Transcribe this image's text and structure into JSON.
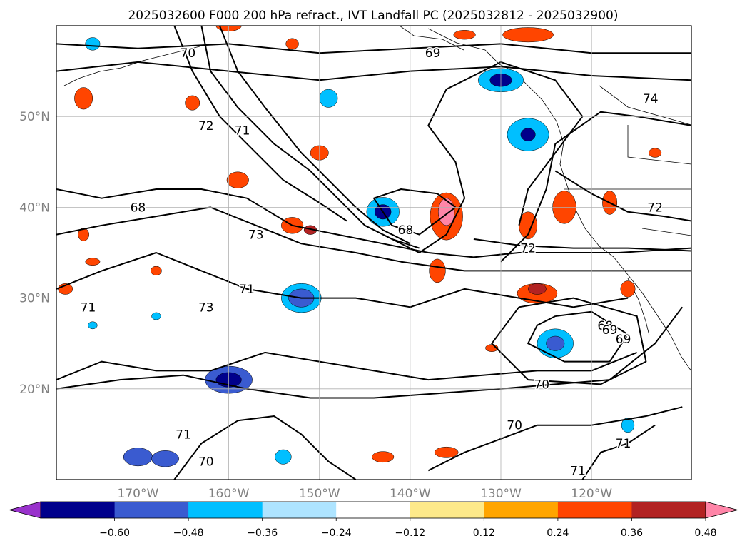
{
  "chart_data": {
    "type": "contour-map",
    "title": "2025032600 F000 200 hPa refract., IVT Landfall PC (2025032812 - 2025032900)",
    "x_axis": {
      "ticks": [
        -170,
        -160,
        -150,
        -140,
        -130,
        -120
      ],
      "tick_labels": [
        "170°W",
        "160°W",
        "150°W",
        "140°W",
        "130°W",
        "120°W"
      ],
      "range": [
        -179,
        -109
      ]
    },
    "y_axis": {
      "ticks": [
        20,
        30,
        40,
        50
      ],
      "tick_labels": [
        "20°N",
        "30°N",
        "40°N",
        "50°N"
      ],
      "range": [
        10,
        60
      ]
    },
    "grid": true,
    "colorbar": {
      "orientation": "horizontal",
      "extend": "both",
      "boundaries": [
        -0.6,
        -0.48,
        -0.36,
        -0.24,
        -0.12,
        0.12,
        0.24,
        0.36,
        0.48,
        0.6
      ],
      "tick_labels": [
        "−0.60",
        "−0.48",
        "−0.36",
        "−0.24",
        "−0.12",
        "0.12",
        "0.24",
        "0.36",
        "0.48",
        "0.60"
      ],
      "colors": [
        "#9932cc",
        "#00008b",
        "#3a5bd0",
        "#00bfff",
        "#aee4ff",
        "#ffffff",
        "#fde98a",
        "#ffa500",
        "#ff4500",
        "#b22222",
        "#ff85a8"
      ]
    },
    "contour_labels": [
      "70",
      "72",
      "71",
      "68",
      "69",
      "74",
      "72",
      "68",
      "73",
      "72",
      "71",
      "73",
      "71",
      "69",
      "68",
      "69",
      "70",
      "71",
      "70",
      "70",
      "71",
      "71"
    ],
    "contours": [
      {
        "level": 72,
        "points": [
          [
            -179,
            42
          ],
          [
            -174,
            41
          ],
          [
            -168,
            42
          ],
          [
            -163,
            42
          ],
          [
            -158,
            41
          ],
          [
            -153,
            38
          ],
          [
            -148,
            37
          ],
          [
            -143,
            36
          ],
          [
            -138,
            35
          ],
          [
            -133,
            34.5
          ],
          [
            -128,
            35
          ],
          [
            -122,
            35
          ],
          [
            -117,
            35
          ],
          [
            -109,
            35.5
          ]
        ]
      },
      {
        "level": 71,
        "points": [
          [
            -179,
            37
          ],
          [
            -174,
            38
          ],
          [
            -168,
            39
          ],
          [
            -162,
            40
          ],
          [
            -157,
            38
          ],
          [
            -152,
            36
          ],
          [
            -146,
            35
          ],
          [
            -141,
            34
          ],
          [
            -134,
            33
          ],
          [
            -126,
            33
          ],
          [
            -118,
            33
          ],
          [
            -109,
            33
          ]
        ]
      },
      {
        "level": 73,
        "points": [
          [
            -179,
            31
          ],
          [
            -174,
            33
          ],
          [
            -168,
            35
          ],
          [
            -163,
            33
          ],
          [
            -158,
            31
          ],
          [
            -152,
            30
          ],
          [
            -146,
            30
          ],
          [
            -140,
            29
          ],
          [
            -134,
            31
          ],
          [
            -128,
            30
          ],
          [
            -122,
            29
          ],
          [
            -116,
            30
          ]
        ]
      },
      {
        "level": 71,
        "points": [
          [
            -179,
            21
          ],
          [
            -174,
            23
          ],
          [
            -168,
            22
          ],
          [
            -162,
            22
          ],
          [
            -156,
            24
          ],
          [
            -150,
            23
          ],
          [
            -144,
            22
          ],
          [
            -138,
            21
          ],
          [
            -132,
            21.5
          ],
          [
            -126,
            22
          ],
          [
            -120,
            22
          ],
          [
            -115,
            24
          ]
        ]
      },
      {
        "level": 70,
        "points": [
          [
            -179,
            20
          ],
          [
            -172,
            21
          ],
          [
            -165,
            21.5
          ],
          [
            -158,
            20
          ],
          [
            -151,
            19
          ],
          [
            -144,
            19
          ],
          [
            -137,
            19.5
          ],
          [
            -130,
            20
          ],
          [
            -124,
            20.5
          ],
          [
            -118,
            21
          ],
          [
            -113,
            25
          ],
          [
            -110,
            29
          ]
        ]
      },
      {
        "level": 70,
        "points": [
          [
            -166,
            10
          ],
          [
            -163,
            14
          ],
          [
            -159,
            16.5
          ],
          [
            -155,
            17
          ],
          [
            -152,
            15
          ],
          [
            -149,
            12
          ],
          [
            -146,
            10
          ]
        ]
      },
      {
        "level": 71,
        "points": [
          [
            -138,
            11
          ],
          [
            -134,
            13
          ],
          [
            -130,
            14.5
          ],
          [
            -126,
            16
          ],
          [
            -120,
            16
          ],
          [
            -114,
            17
          ],
          [
            -110,
            18
          ]
        ]
      },
      {
        "level": 71,
        "points": [
          [
            -121,
            10
          ],
          [
            -119,
            13
          ],
          [
            -116,
            14
          ],
          [
            -113,
            16
          ]
        ]
      },
      {
        "level": 68,
        "points": [
          [
            -179,
            58
          ],
          [
            -170,
            57.5
          ],
          [
            -160,
            58
          ],
          [
            -150,
            57
          ],
          [
            -140,
            57.5
          ],
          [
            -130,
            58
          ],
          [
            -120,
            57
          ],
          [
            -109,
            57
          ]
        ]
      },
      {
        "level": 69,
        "points": [
          [
            -179,
            55
          ],
          [
            -170,
            56
          ],
          [
            -160,
            55
          ],
          [
            -150,
            54
          ],
          [
            -140,
            55
          ],
          [
            -130,
            55.5
          ],
          [
            -120,
            54.5
          ],
          [
            -109,
            54
          ]
        ]
      },
      {
        "level": 70,
        "points": [
          [
            -163,
            60
          ],
          [
            -162,
            55
          ],
          [
            -159,
            51
          ],
          [
            -155,
            47
          ],
          [
            -151,
            44
          ],
          [
            -148,
            41
          ],
          [
            -145,
            38
          ],
          [
            -142,
            36.5
          ],
          [
            -139,
            35.5
          ]
        ]
      },
      {
        "level": 71,
        "points": [
          [
            -161,
            60
          ],
          [
            -159,
            55
          ],
          [
            -156,
            51
          ],
          [
            -152,
            46
          ],
          [
            -149,
            43
          ],
          [
            -146,
            40
          ],
          [
            -143,
            37.5
          ],
          [
            -140,
            36
          ]
        ]
      },
      {
        "level": 72,
        "points": [
          [
            -166,
            60
          ],
          [
            -164,
            55
          ],
          [
            -161,
            50
          ],
          [
            -157,
            46
          ],
          [
            -154,
            43
          ],
          [
            -150,
            40.5
          ],
          [
            -147,
            38.5
          ]
        ]
      },
      {
        "level": 68,
        "points": [
          [
            -143,
            37
          ],
          [
            -139,
            35
          ],
          [
            -136,
            37
          ],
          [
            -134,
            41
          ],
          [
            -135,
            45
          ],
          [
            -138,
            49
          ],
          [
            -136,
            53
          ],
          [
            -130,
            56
          ],
          [
            -124,
            54
          ],
          [
            -121,
            50
          ],
          [
            -124,
            46
          ],
          [
            -127,
            42
          ],
          [
            -128,
            38
          ]
        ]
      },
      {
        "level": 69,
        "points": [
          [
            -130,
            34
          ],
          [
            -127,
            37
          ],
          [
            -125,
            42
          ],
          [
            -124,
            47
          ],
          [
            -119,
            50.5
          ],
          [
            -115,
            50
          ],
          [
            -109,
            49
          ]
        ]
      },
      {
        "level": 74,
        "points": [
          [
            -124,
            44
          ],
          [
            -120,
            41.5
          ],
          [
            -116,
            39.5
          ],
          [
            -112,
            39
          ],
          [
            -109,
            38.5
          ]
        ]
      },
      {
        "level": 72,
        "points": [
          [
            -133,
            36.5
          ],
          [
            -128,
            35.8
          ],
          [
            -122,
            35.5
          ],
          [
            -116,
            35.5
          ],
          [
            -109,
            35.2
          ]
        ]
      },
      {
        "level": 68,
        "points": [
          [
            -124,
            28
          ],
          [
            -120,
            28.5
          ],
          [
            -116,
            26
          ],
          [
            -118,
            23
          ],
          [
            -123,
            23
          ],
          [
            -127,
            25
          ],
          [
            -126,
            27
          ],
          [
            -124,
            28
          ]
        ]
      },
      {
        "level": 69,
        "points": [
          [
            -128,
            29
          ],
          [
            -122,
            30
          ],
          [
            -115,
            28
          ],
          [
            -114,
            23
          ],
          [
            -119,
            20.5
          ],
          [
            -127,
            21
          ],
          [
            -131,
            25
          ],
          [
            -128,
            29
          ]
        ]
      },
      {
        "level": 70,
        "points": [
          [
            -135,
            40
          ],
          [
            -139,
            37
          ],
          [
            -142,
            38
          ],
          [
            -144,
            41
          ],
          [
            -141,
            42
          ],
          [
            -137,
            41.5
          ],
          [
            -135,
            40
          ]
        ]
      }
    ]
  }
}
